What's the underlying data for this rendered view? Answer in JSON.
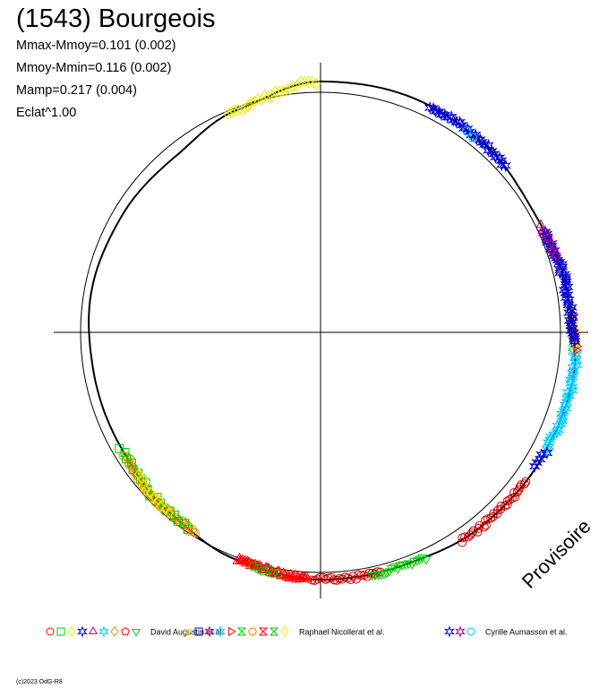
{
  "title": "(1543) Bourgeois",
  "stats": [
    "Mmax-Mmoy=0.101 (0.002)",
    "Mmoy-Mmin=0.116 (0.002)",
    "Mamp=0.217 (0.004)",
    "Eclat^1.00"
  ],
  "watermark": "Provisoire",
  "copyright": "(c)2023 OdG-R8",
  "colors": {
    "axes": "#000000",
    "circle": "#000000",
    "curve": "#000000",
    "red": "#ff0000",
    "darkred": "#cc0000",
    "green": "#00cc00",
    "orange": "#ff8800",
    "yellow": "#eeee00",
    "cyan": "#00ccff",
    "blue": "#0000cc",
    "magenta": "#aa0088"
  },
  "chart_data": {
    "type": "polar-lightcurve",
    "description_fields": "angle = rotation phase (deg), radius = relative brightness",
    "reference_circle_radius": 1.0,
    "curve": {
      "phase_deg": [
        0,
        20,
        40,
        60,
        80,
        100,
        120,
        140,
        160,
        180,
        200,
        220,
        240,
        260,
        280,
        300,
        320,
        340,
        360
      ],
      "radius": [
        1.045,
        1.05,
        1.04,
        1.02,
        1.04,
        1.07,
        1.06,
        1.05,
        1.03,
        1.03,
        1.01,
        0.98,
        0.96,
        0.96,
        0.97,
        0.96,
        0.95,
        0.99,
        1.045
      ]
    },
    "series": [
      {
        "name": "David Augustin et al.",
        "segments": [
          {
            "color": "darkred",
            "marker": "circle",
            "phase_from": 126,
            "phase_to": 146,
            "radius": 1.03,
            "count": 34
          },
          {
            "color": "darkred",
            "marker": "circle",
            "phase_from": 166,
            "phase_to": 182,
            "radius": 1.02,
            "count": 26
          },
          {
            "color": "green",
            "marker": "triangle-down",
            "phase_from": 155,
            "phase_to": 168,
            "radius": 1.02,
            "count": 20
          },
          {
            "color": "red",
            "marker": "triangle",
            "phase_from": 183,
            "phase_to": 200,
            "radius": 1.0,
            "count": 60
          },
          {
            "color": "green",
            "marker": "hexagon",
            "phase_from": 190,
            "phase_to": 196,
            "radius": 1.0,
            "count": 6
          },
          {
            "color": "orange",
            "marker": "circle",
            "phase_from": 212,
            "phase_to": 238,
            "radius": 0.99,
            "count": 50
          },
          {
            "color": "green",
            "marker": "square",
            "phase_from": 214,
            "phase_to": 240,
            "radius": 0.985,
            "count": 18
          },
          {
            "color": "yellow",
            "marker": "diamond",
            "phase_from": 220,
            "phase_to": 232,
            "radius": 0.99,
            "count": 10
          }
        ]
      },
      {
        "name": "Raphael Nicollerat et al.",
        "segments": [
          {
            "color": "cyan",
            "marker": "star",
            "phase_from": 90,
            "phase_to": 118,
            "radius": 1.04,
            "count": 40
          },
          {
            "color": "yellow",
            "marker": "hexagon",
            "phase_from": 84,
            "phase_to": 94,
            "radius": 1.045,
            "count": 12
          },
          {
            "color": "red",
            "marker": "triangle-right",
            "phase_from": 86,
            "phase_to": 94,
            "radius": 1.045,
            "count": 10
          },
          {
            "color": "yellow",
            "marker": "diamond",
            "phase_from": 337,
            "phase_to": 359,
            "radius": 0.97,
            "count": 26
          },
          {
            "color": "magenta",
            "marker": "triangle",
            "phase_from": 64,
            "phase_to": 74,
            "radius": 1.02,
            "count": 8
          }
        ]
      },
      {
        "name": "Cyrille Aumasson et al.",
        "segments": [
          {
            "color": "blue",
            "marker": "star",
            "phase_from": 66,
            "phase_to": 92,
            "radius": 1.035,
            "count": 45
          },
          {
            "color": "blue",
            "marker": "star",
            "phase_from": 118,
            "phase_to": 122,
            "radius": 1.04,
            "count": 5
          },
          {
            "color": "blue",
            "marker": "star",
            "phase_from": 26,
            "phase_to": 48,
            "radius": 1.04,
            "count": 30
          },
          {
            "color": "magenta",
            "marker": "star",
            "phase_from": 66,
            "phase_to": 72,
            "radius": 1.03,
            "count": 5
          },
          {
            "color": "cyan",
            "marker": "hexagon",
            "phase_from": 36,
            "phase_to": 38,
            "radius": 1.04,
            "count": 2
          }
        ]
      }
    ],
    "legend": {
      "placement": "bottom",
      "groups": [
        {
          "label": "David Augustin et al.",
          "symbols": [
            {
              "marker": "circle",
              "color": "red"
            },
            {
              "marker": "square",
              "color": "green"
            },
            {
              "marker": "diamond",
              "color": "yellow"
            },
            {
              "marker": "star",
              "color": "blue"
            },
            {
              "marker": "triangle",
              "color": "magenta"
            },
            {
              "marker": "star",
              "color": "cyan"
            },
            {
              "marker": "diamond",
              "color": "orange"
            },
            {
              "marker": "pentagon",
              "color": "red"
            },
            {
              "marker": "triangle-down",
              "color": "green"
            }
          ]
        },
        {
          "label": "Raphael Nicollerat et al.",
          "symbols": [
            {
              "marker": "triangle-down",
              "color": "yellow"
            },
            {
              "marker": "square",
              "color": "blue"
            },
            {
              "marker": "star",
              "color": "magenta"
            },
            {
              "marker": "star",
              "color": "cyan"
            },
            {
              "marker": "triangle-right",
              "color": "red"
            },
            {
              "marker": "hourglass",
              "color": "green"
            },
            {
              "marker": "hexagon",
              "color": "orange"
            },
            {
              "marker": "hourglass",
              "color": "red"
            },
            {
              "marker": "hourglass",
              "color": "green"
            },
            {
              "marker": "diamond",
              "color": "yellow"
            }
          ]
        },
        {
          "label": "Cyrille Aumasson et al.",
          "symbols": [
            {
              "marker": "star",
              "color": "blue"
            },
            {
              "marker": "star",
              "color": "magenta"
            },
            {
              "marker": "hexagon",
              "color": "cyan"
            }
          ]
        }
      ]
    }
  }
}
